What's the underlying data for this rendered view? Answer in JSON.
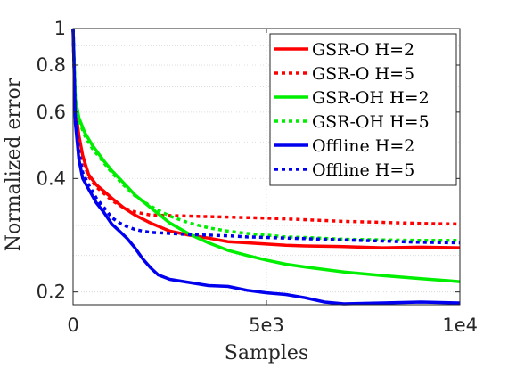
{
  "chart_data": {
    "type": "line",
    "xlabel": "Samples",
    "ylabel": "Normalized error",
    "xlim": [
      0,
      10000
    ],
    "ylim": [
      0.185,
      1.0
    ],
    "yscale": "log",
    "grid": true,
    "legend_position": "top-right",
    "x_ticks": [
      {
        "value": 0,
        "label": "0"
      },
      {
        "value": 5000,
        "label": "5e3"
      },
      {
        "value": 10000,
        "label": "1e4"
      }
    ],
    "y_ticks": [
      {
        "value": 0.2,
        "label": "0.2"
      },
      {
        "value": 0.4,
        "label": "0.4"
      },
      {
        "value": 0.6,
        "label": "0.6"
      },
      {
        "value": 0.8,
        "label": "0.8"
      },
      {
        "value": 1.0,
        "label": "1"
      }
    ],
    "y_minor_grid": [
      0.25,
      0.3,
      0.5,
      0.7,
      0.9
    ],
    "series": [
      {
        "name": "GSR-O H=2",
        "color": "#ff0000",
        "dash": "solid",
        "x": [
          0,
          60,
          150,
          250,
          400,
          600,
          800,
          1000,
          1300,
          1600,
          2000,
          2500,
          3000,
          3500,
          4000,
          4500,
          5000,
          5500,
          6000,
          7000,
          8000,
          9000,
          10000
        ],
        "y": [
          1.0,
          0.62,
          0.52,
          0.46,
          0.41,
          0.385,
          0.37,
          0.355,
          0.335,
          0.32,
          0.305,
          0.29,
          0.283,
          0.278,
          0.272,
          0.27,
          0.268,
          0.266,
          0.265,
          0.264,
          0.262,
          0.263,
          0.262
        ]
      },
      {
        "name": "GSR-O H=5",
        "color": "#ff0000",
        "dash": "dotted",
        "x": [
          0,
          60,
          150,
          250,
          400,
          600,
          800,
          1000,
          1300,
          1600,
          2000,
          2500,
          3000,
          3500,
          4000,
          4500,
          5000,
          6000,
          7000,
          8000,
          9000,
          10000
        ],
        "y": [
          1.0,
          0.6,
          0.5,
          0.45,
          0.405,
          0.38,
          0.365,
          0.35,
          0.335,
          0.326,
          0.32,
          0.319,
          0.318,
          0.317,
          0.316,
          0.315,
          0.314,
          0.311,
          0.308,
          0.306,
          0.304,
          0.303
        ]
      },
      {
        "name": "GSR-OH H=2",
        "color": "#00ee00",
        "dash": "solid",
        "x": [
          0,
          60,
          150,
          300,
          500,
          800,
          1000,
          1300,
          1600,
          2000,
          2500,
          3000,
          3500,
          4000,
          4500,
          5000,
          5500,
          6000,
          7000,
          8000,
          9000,
          10000
        ],
        "y": [
          1.0,
          0.65,
          0.58,
          0.53,
          0.49,
          0.445,
          0.42,
          0.39,
          0.362,
          0.335,
          0.305,
          0.285,
          0.27,
          0.258,
          0.25,
          0.243,
          0.237,
          0.233,
          0.226,
          0.221,
          0.217,
          0.213
        ]
      },
      {
        "name": "GSR-OH H=5",
        "color": "#00ee00",
        "dash": "dotted",
        "x": [
          0,
          60,
          150,
          300,
          500,
          800,
          1000,
          1300,
          1600,
          2000,
          2500,
          3000,
          3500,
          4000,
          4500,
          5000,
          5500,
          6000,
          7000,
          8000,
          9000,
          10000
        ],
        "y": [
          1.0,
          0.64,
          0.57,
          0.52,
          0.48,
          0.44,
          0.415,
          0.385,
          0.36,
          0.338,
          0.318,
          0.305,
          0.296,
          0.29,
          0.286,
          0.283,
          0.28,
          0.279,
          0.276,
          0.275,
          0.274,
          0.274
        ]
      },
      {
        "name": "Offline H=2",
        "color": "#0000ee",
        "dash": "solid",
        "x": [
          0,
          60,
          150,
          250,
          400,
          500,
          600,
          800,
          1000,
          1200,
          1400,
          1600,
          1800,
          2000,
          2200,
          2500,
          3000,
          3500,
          4000,
          4500,
          5000,
          5500,
          6000,
          6500,
          7000,
          8000,
          9000,
          10000
        ],
        "y": [
          1.0,
          0.56,
          0.45,
          0.4,
          0.375,
          0.36,
          0.345,
          0.325,
          0.303,
          0.29,
          0.277,
          0.262,
          0.245,
          0.232,
          0.222,
          0.216,
          0.212,
          0.208,
          0.207,
          0.202,
          0.199,
          0.197,
          0.193,
          0.188,
          0.186,
          0.187,
          0.188,
          0.187
        ]
      },
      {
        "name": "Offline H=5",
        "color": "#0000ee",
        "dash": "dotted",
        "x": [
          0,
          60,
          150,
          250,
          400,
          500,
          600,
          800,
          1000,
          1200,
          1400,
          1600,
          1800,
          2000,
          2500,
          3000,
          3500,
          4000,
          4500,
          5000,
          5500,
          6000,
          7000,
          8000,
          9000,
          10000
        ],
        "y": [
          1.0,
          0.58,
          0.47,
          0.415,
          0.385,
          0.37,
          0.355,
          0.335,
          0.315,
          0.305,
          0.298,
          0.293,
          0.29,
          0.288,
          0.286,
          0.284,
          0.283,
          0.282,
          0.28,
          0.279,
          0.278,
          0.277,
          0.275,
          0.273,
          0.271,
          0.27
        ]
      }
    ]
  }
}
